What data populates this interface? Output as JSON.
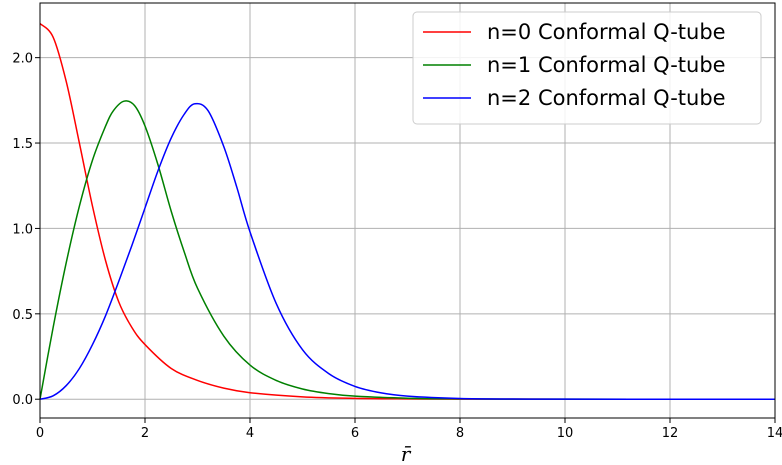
{
  "chart_data": {
    "type": "line",
    "title": "",
    "xlabel": "r̄",
    "ylabel": "",
    "xlim": [
      0,
      14
    ],
    "ylim": [
      -0.11,
      2.32
    ],
    "x_ticks": [
      0,
      2,
      4,
      6,
      8,
      10,
      12,
      14
    ],
    "x_tick_labels": [
      "0",
      "2",
      "4",
      "6",
      "8",
      "10",
      "12",
      "14"
    ],
    "y_ticks": [
      0.0,
      0.5,
      1.0,
      1.5,
      2.0
    ],
    "y_tick_labels": [
      "0.0",
      "0.5",
      "1.0",
      "1.5",
      "2.0"
    ],
    "grid": true,
    "legend_position": "top-right",
    "series": [
      {
        "name": "n=0 Conformal Q-tube",
        "color": "#ff0000",
        "x": [
          0,
          0.25,
          0.5,
          0.75,
          1.0,
          1.25,
          1.5,
          1.75,
          2.0,
          2.5,
          3.0,
          3.5,
          4.0,
          5.0,
          6.0,
          7.0,
          8.0,
          10.0,
          12.0,
          14.0
        ],
        "y": [
          2.2,
          2.12,
          1.86,
          1.5,
          1.13,
          0.81,
          0.57,
          0.42,
          0.32,
          0.18,
          0.11,
          0.065,
          0.038,
          0.014,
          0.005,
          0.002,
          0.0008,
          0.0001,
          0.0,
          0.0
        ]
      },
      {
        "name": "n=1 Conformal Q-tube",
        "color": "#008000",
        "x": [
          0,
          0.25,
          0.5,
          0.75,
          1.0,
          1.25,
          1.4,
          1.6,
          1.8,
          2.0,
          2.25,
          2.5,
          2.75,
          3.0,
          3.5,
          4.0,
          4.5,
          5.0,
          5.5,
          6.0,
          7.0,
          8.0,
          9.0,
          10.0,
          12.0,
          14.0
        ],
        "y": [
          0.0,
          0.42,
          0.8,
          1.13,
          1.4,
          1.6,
          1.69,
          1.745,
          1.72,
          1.6,
          1.37,
          1.1,
          0.86,
          0.65,
          0.37,
          0.2,
          0.11,
          0.06,
          0.033,
          0.018,
          0.006,
          0.002,
          0.0006,
          0.0002,
          0.0,
          0.0
        ]
      },
      {
        "name": "n=2 Conformal Q-tube",
        "color": "#0000ff",
        "x": [
          0,
          0.25,
          0.5,
          0.75,
          1.0,
          1.25,
          1.5,
          1.75,
          2.0,
          2.25,
          2.5,
          2.75,
          2.95,
          3.2,
          3.5,
          3.75,
          4.0,
          4.5,
          5.0,
          5.5,
          6.0,
          6.5,
          7.0,
          8.0,
          9.0,
          10.0,
          12.0,
          14.0
        ],
        "y": [
          0.0,
          0.02,
          0.08,
          0.18,
          0.32,
          0.49,
          0.69,
          0.9,
          1.12,
          1.34,
          1.53,
          1.67,
          1.73,
          1.69,
          1.48,
          1.24,
          0.98,
          0.56,
          0.29,
          0.15,
          0.075,
          0.037,
          0.018,
          0.004,
          0.001,
          0.0002,
          0.0,
          0.0
        ]
      }
    ]
  }
}
